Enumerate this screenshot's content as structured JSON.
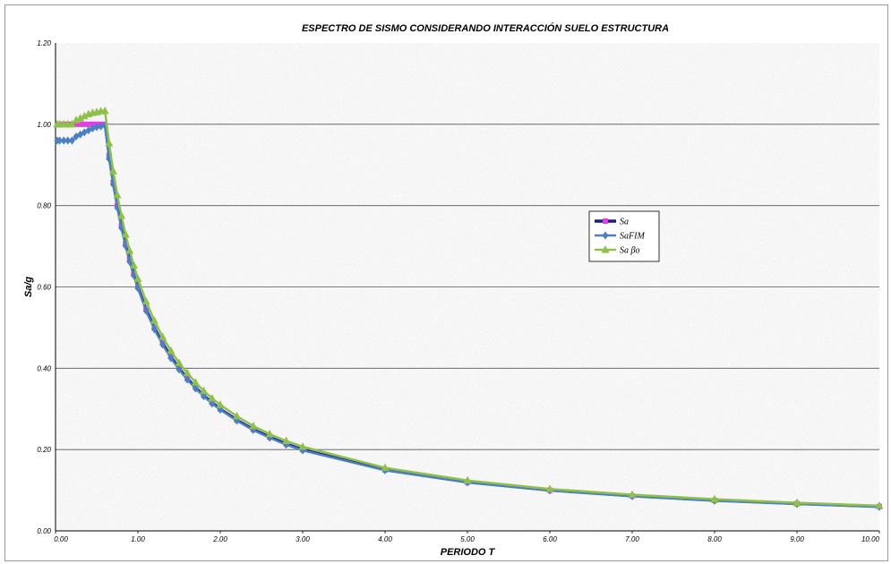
{
  "chart_data": {
    "type": "line",
    "title": "ESPECTRO  DE  SISMO  CONSIDERANDO  INTERACCIÓN  SUELO  ESTRUCTURA",
    "xlabel": "PERIODO T",
    "ylabel": "Sa/g",
    "xlim": [
      0,
      10
    ],
    "ylim": [
      0,
      1.2
    ],
    "x_ticks": [
      "0.00",
      "1.00",
      "2.00",
      "3.00",
      "4.00",
      "5.00",
      "6.00",
      "7.00",
      "8.00",
      "9.00",
      "10.00"
    ],
    "y_ticks": [
      "0.00",
      "0.20",
      "0.40",
      "0.60",
      "0.80",
      "1.00",
      "1.20"
    ],
    "grid": "horizontal",
    "legend_position": "right-center",
    "series": [
      {
        "name": "Sa",
        "color": "#1a1a8c",
        "marker_color": "#e040e0",
        "marker": "square",
        "x": [
          0.05,
          0.1,
          0.15,
          0.2,
          0.25,
          0.3,
          0.35,
          0.4,
          0.45,
          0.5,
          0.55,
          0.6,
          0.65,
          0.7,
          0.75,
          0.8,
          0.85,
          0.9,
          0.95,
          1.0,
          1.1,
          1.2,
          1.3,
          1.4,
          1.5,
          1.6,
          1.7,
          1.8,
          1.9,
          2.0,
          2.2,
          2.4,
          2.6,
          2.8,
          3.0,
          4.0,
          5.0,
          6.0,
          7.0,
          8.0,
          9.0,
          10.0
        ],
        "y": [
          1.0,
          1.0,
          1.0,
          1.0,
          1.0,
          1.0,
          1.0,
          1.0,
          1.0,
          1.0,
          1.0,
          1.0,
          0.923,
          0.857,
          0.8,
          0.75,
          0.706,
          0.667,
          0.632,
          0.6,
          0.545,
          0.5,
          0.462,
          0.429,
          0.4,
          0.375,
          0.353,
          0.333,
          0.316,
          0.3,
          0.273,
          0.25,
          0.231,
          0.214,
          0.2,
          0.15,
          0.12,
          0.1,
          0.086,
          0.075,
          0.067,
          0.06
        ]
      },
      {
        "name": "SaFIM",
        "color": "#4a7fc4",
        "marker": "diamond",
        "x": [
          0.02,
          0.05,
          0.1,
          0.15,
          0.2,
          0.25,
          0.3,
          0.35,
          0.4,
          0.45,
          0.5,
          0.55,
          0.6,
          0.65,
          0.7,
          0.75,
          0.8,
          0.85,
          0.9,
          0.95,
          1.0,
          1.1,
          1.2,
          1.3,
          1.4,
          1.5,
          1.6,
          1.7,
          1.8,
          1.9,
          2.0,
          2.2,
          2.4,
          2.6,
          2.8,
          3.0,
          4.0,
          5.0,
          6.0,
          7.0,
          8.0,
          9.0,
          10.0
        ],
        "y": [
          0.96,
          0.96,
          0.96,
          0.96,
          0.96,
          0.97,
          0.975,
          0.98,
          0.985,
          0.99,
          0.993,
          0.995,
          0.997,
          0.915,
          0.852,
          0.795,
          0.745,
          0.701,
          0.662,
          0.628,
          0.597,
          0.541,
          0.496,
          0.458,
          0.425,
          0.397,
          0.372,
          0.35,
          0.331,
          0.313,
          0.298,
          0.271,
          0.248,
          0.229,
          0.212,
          0.198,
          0.149,
          0.119,
          0.099,
          0.085,
          0.074,
          0.066,
          0.059
        ]
      },
      {
        "name": "Sa βo",
        "color": "#8fc04a",
        "marker": "triangle",
        "x": [
          0.02,
          0.05,
          0.1,
          0.15,
          0.2,
          0.25,
          0.3,
          0.35,
          0.4,
          0.45,
          0.5,
          0.55,
          0.6,
          0.65,
          0.7,
          0.75,
          0.8,
          0.85,
          0.9,
          0.95,
          1.0,
          1.1,
          1.2,
          1.3,
          1.4,
          1.5,
          1.6,
          1.7,
          1.8,
          1.9,
          2.0,
          2.2,
          2.4,
          2.6,
          2.8,
          3.0,
          4.0,
          5.0,
          6.0,
          7.0,
          8.0,
          9.0,
          10.0
        ],
        "y": [
          1.0,
          1.0,
          1.0,
          1.0,
          1.0,
          1.01,
          1.015,
          1.02,
          1.025,
          1.028,
          1.03,
          1.032,
          1.033,
          0.953,
          0.885,
          0.826,
          0.775,
          0.729,
          0.689,
          0.653,
          0.62,
          0.564,
          0.517,
          0.477,
          0.443,
          0.413,
          0.388,
          0.365,
          0.344,
          0.326,
          0.31,
          0.282,
          0.258,
          0.238,
          0.221,
          0.207,
          0.155,
          0.124,
          0.103,
          0.089,
          0.078,
          0.069,
          0.062
        ]
      }
    ]
  }
}
